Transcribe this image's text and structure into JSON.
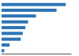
{
  "chart_data": {
    "type": "bar",
    "orientation": "horizontal",
    "categories": [
      null,
      null,
      null,
      null,
      null,
      null,
      null,
      null,
      null
    ],
    "values": [
      97,
      83,
      52,
      40,
      36,
      32,
      29,
      12,
      4
    ],
    "color": "#2e75b6",
    "xlim": [
      0,
      105
    ],
    "grid": false,
    "tick_labels": false
  }
}
